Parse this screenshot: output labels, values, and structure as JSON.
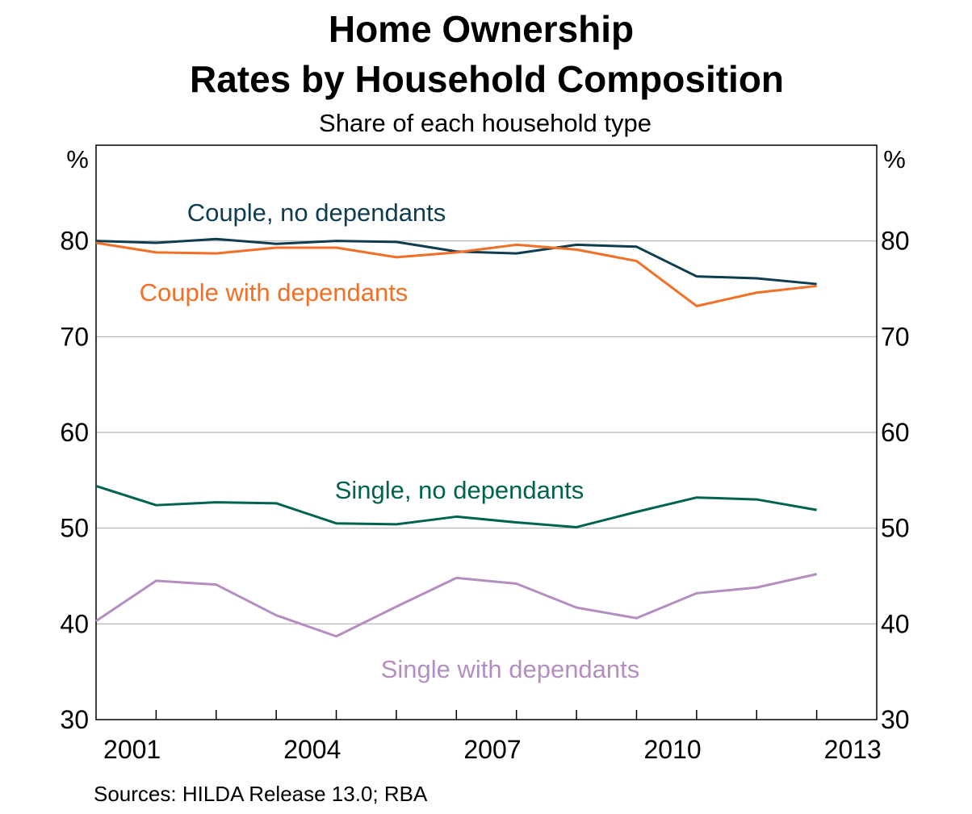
{
  "chart_data": {
    "type": "line",
    "title_line1": "Home Ownership",
    "title_line2": "Rates by Household Composition",
    "subtitle": "Share of each household type",
    "unit_left": "%",
    "unit_right": "%",
    "source": "Sources:  HILDA Release 13.0; RBA",
    "xlim": [
      2001,
      2014
    ],
    "ylim": [
      30,
      90
    ],
    "y_ticks": [
      30,
      40,
      50,
      60,
      70,
      80
    ],
    "y_tick_labels": [
      "30",
      "40",
      "50",
      "60",
      "70",
      "80"
    ],
    "x_tick_labels": [
      "2001",
      "2004",
      "2007",
      "2010",
      "2013"
    ],
    "x_tick_label_positions": [
      2001.6,
      2004.6,
      2007.6,
      2010.6,
      2013.6
    ],
    "gridlines": [
      40,
      50,
      60,
      70,
      80
    ],
    "years": [
      2001,
      2002,
      2003,
      2004,
      2005,
      2006,
      2007,
      2008,
      2009,
      2010,
      2011,
      2012,
      2013
    ],
    "series": [
      {
        "name": "Couple, no dependants",
        "color": "#0d3d4f",
        "values": [
          80.0,
          79.8,
          80.2,
          79.7,
          80.0,
          79.9,
          78.9,
          78.7,
          79.6,
          79.4,
          76.3,
          76.1,
          75.5
        ]
      },
      {
        "name": "Couple with dependants",
        "color": "#f26f26",
        "values": [
          79.8,
          78.8,
          78.7,
          79.3,
          79.3,
          78.3,
          78.8,
          79.6,
          79.1,
          77.9,
          73.2,
          74.6,
          75.3
        ]
      },
      {
        "name": "Single, no dependants",
        "color": "#006350",
        "values": [
          54.4,
          52.4,
          52.7,
          52.6,
          50.5,
          50.4,
          51.2,
          50.6,
          50.1,
          51.7,
          53.2,
          53.0,
          51.9
        ]
      },
      {
        "name": "Single with dependants",
        "color": "#b48ec0",
        "values": [
          40.3,
          44.5,
          44.1,
          40.9,
          38.7,
          41.8,
          44.8,
          44.2,
          41.7,
          40.6,
          43.2,
          43.8,
          45.2
        ]
      }
    ]
  }
}
